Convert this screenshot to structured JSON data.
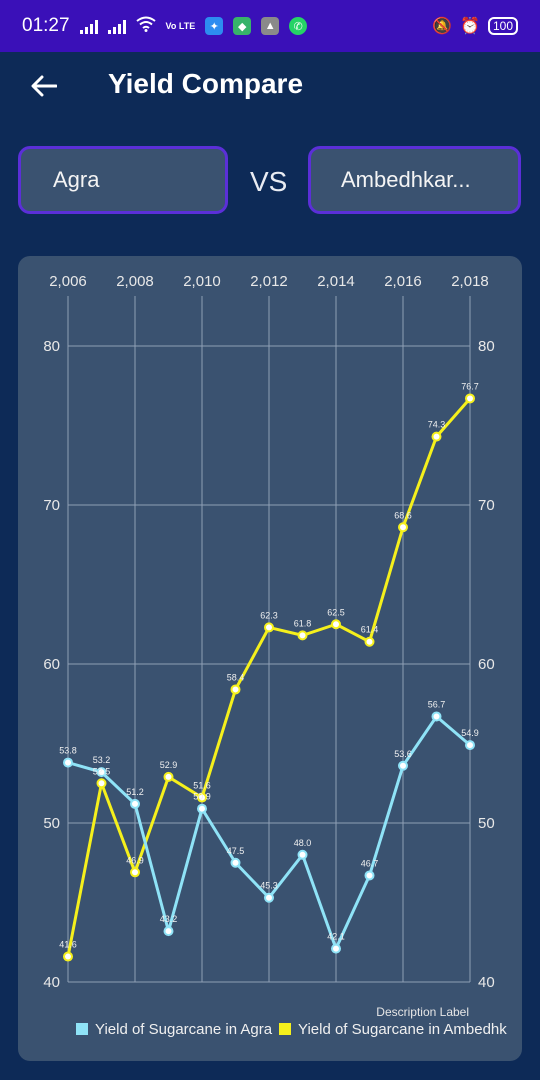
{
  "status_bar": {
    "time": "01:27",
    "volte_label": "Vo LTE",
    "battery": "100",
    "icons": [
      "signal-icon",
      "wifi-icon",
      "volte-icon",
      "bluetooth-app-icon",
      "files-app-icon",
      "maps-app-icon",
      "whatsapp-icon",
      "mute-icon",
      "alarm-icon",
      "battery-icon"
    ]
  },
  "app_bar": {
    "title": "Yield Compare"
  },
  "compare": {
    "left_district": "Agra",
    "vs_label": "VS",
    "right_district": "Ambedhkar..."
  },
  "colors": {
    "background": "#0d2a57",
    "card": "#3a5270",
    "agra_series": "#8fe3f7",
    "ambedhkar_series": "#f5f01c",
    "box_border": "#5b2fd8"
  },
  "chart_data": {
    "type": "line",
    "x_ticks": [
      "2,006",
      "2,008",
      "2,010",
      "2,012",
      "2,014",
      "2,016",
      "2,018"
    ],
    "y_ticks": [
      "40",
      "50",
      "60",
      "70",
      "80"
    ],
    "xlim": [
      2006,
      2018
    ],
    "ylim": [
      40,
      80
    ],
    "grid": true,
    "description_label": "Description Label",
    "legend_position": "bottom",
    "series": [
      {
        "name": "Yield of Sugarcane in Agra",
        "x": [
          2006,
          2007,
          2008,
          2009,
          2010,
          2011,
          2012,
          2013,
          2014,
          2015,
          2016,
          2017,
          2018
        ],
        "values": [
          53.8,
          53.2,
          51.2,
          43.2,
          50.9,
          47.5,
          45.3,
          48.0,
          42.1,
          46.7,
          53.6,
          56.7,
          54.9
        ],
        "labels": [
          "53.8",
          "53.2",
          "51.2",
          "43.2",
          "50.9",
          "47.5",
          "45.3",
          "48.0",
          "42.1",
          "46.7",
          "53.6",
          "56.7",
          "54.9"
        ]
      },
      {
        "name": "Yield of Sugarcane in Ambedhk",
        "x": [
          2006,
          2007,
          2008,
          2009,
          2010,
          2011,
          2012,
          2013,
          2014,
          2015,
          2016,
          2017,
          2018
        ],
        "values": [
          41.6,
          52.5,
          46.9,
          52.9,
          51.6,
          58.4,
          62.3,
          61.8,
          62.5,
          61.4,
          68.6,
          74.3,
          76.7
        ],
        "labels": [
          "41.6",
          "52.5",
          "46.9",
          "52.9",
          "51.6",
          "58.4",
          "62.3",
          "61.8",
          "62.5",
          "61.4",
          "68.6",
          "74.3",
          "76.7"
        ]
      }
    ]
  }
}
